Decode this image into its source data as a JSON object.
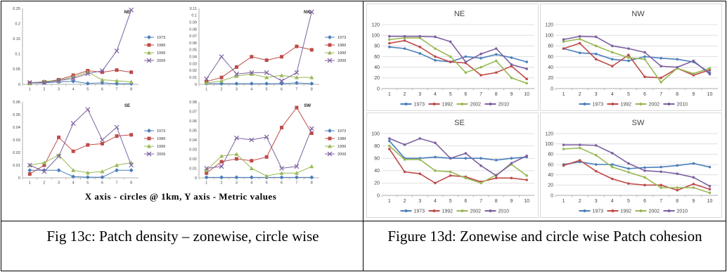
{
  "figure_left": {
    "xaxis_note": "X axis - circles @ 1km, Y axis - Metric values",
    "caption": "Fig 13c: Patch density – zonewise, circle wise"
  },
  "figure_right": {
    "caption": "Figure 13d: Zonewise and circle wise Patch cohesion"
  },
  "colors": {
    "series1": "#4a7ebb",
    "series2": "#be4b48",
    "series3": "#98b954",
    "series4": "#7d60a0"
  },
  "chart_data": [
    {
      "type": "line",
      "title": "NE",
      "figure": "13c",
      "x": [
        1,
        2,
        3,
        4,
        5,
        6,
        7,
        8
      ],
      "yticks": [
        "0",
        "0.05",
        "0.1",
        "0.15",
        "0.2",
        "0.25"
      ],
      "ylim": [
        0,
        0.25
      ],
      "series": [
        {
          "name": "1973",
          "values": [
            0.004,
            0.005,
            0.008,
            0.01,
            0.003,
            0.005,
            0.002,
            0.002
          ]
        },
        {
          "name": "1989",
          "values": [
            0.005,
            0.008,
            0.015,
            0.03,
            0.045,
            0.04,
            0.047,
            0.04
          ]
        },
        {
          "name": "1999",
          "values": [
            0.003,
            0.01,
            0.012,
            0.025,
            0.04,
            0.015,
            0.012,
            0.008
          ]
        },
        {
          "name": "2009",
          "values": [
            0.006,
            0.006,
            0.012,
            0.02,
            0.035,
            0.045,
            0.11,
            0.245
          ]
        }
      ]
    },
    {
      "type": "line",
      "title": "NW",
      "figure": "13c",
      "x": [
        1,
        2,
        3,
        4,
        5,
        6,
        7,
        8
      ],
      "yticks": [
        "0",
        "0.01",
        "0.02",
        "0.03",
        "0.04",
        "0.05",
        "0.06",
        "0.07",
        "0.08",
        "0.09",
        "0.1",
        "0.11"
      ],
      "ylim": [
        0,
        0.11
      ],
      "series": [
        {
          "name": "1973",
          "values": [
            0.001,
            0.001,
            0.001,
            0.001,
            0.001,
            0.001,
            0.002,
            0.001
          ]
        },
        {
          "name": "1989",
          "values": [
            0.004,
            0.01,
            0.025,
            0.04,
            0.035,
            0.04,
            0.055,
            0.05
          ]
        },
        {
          "name": "1999",
          "values": [
            0.002,
            0.005,
            0.012,
            0.015,
            0.01,
            0.013,
            0.01,
            0.01
          ]
        },
        {
          "name": "2009",
          "values": [
            0.008,
            0.04,
            0.015,
            0.017,
            0.017,
            0.005,
            0.017,
            0.105
          ]
        }
      ]
    },
    {
      "type": "line",
      "title": "SE",
      "figure": "13c",
      "x": [
        1,
        2,
        3,
        4,
        5,
        6,
        7,
        8
      ],
      "yticks": [
        "0",
        "0.01",
        "0.02",
        "0.03",
        "0.04",
        "0.05",
        "0.06"
      ],
      "ylim": [
        0,
        0.06
      ],
      "series": [
        {
          "name": "1973",
          "values": [
            0.006,
            0.006,
            0.006,
            0.001,
            0.0005,
            0.0005,
            0.006,
            0.006
          ]
        },
        {
          "name": "1989",
          "values": [
            0.003,
            0.01,
            0.032,
            0.021,
            0.026,
            0.027,
            0.033,
            0.034
          ]
        },
        {
          "name": "1999",
          "values": [
            0.01,
            0.012,
            0.018,
            0.006,
            0.004,
            0.005,
            0.01,
            0.012
          ]
        },
        {
          "name": "2009",
          "values": [
            0.01,
            0.005,
            0.017,
            0.043,
            0.054,
            0.03,
            0.04,
            0.01
          ]
        }
      ]
    },
    {
      "type": "line",
      "title": "SW",
      "figure": "13c",
      "x": [
        1,
        2,
        3,
        4,
        5,
        6,
        7,
        8
      ],
      "yticks": [
        "0",
        "0.01",
        "0.02",
        "0.03",
        "0.04",
        "0.05",
        "0.06",
        "0.07",
        "0.08"
      ],
      "ylim": [
        0,
        0.08
      ],
      "series": [
        {
          "name": "1973",
          "values": [
            0.0005,
            0.0005,
            0.0005,
            0.0005,
            0.0005,
            0.0005,
            0.0005,
            0.0005
          ]
        },
        {
          "name": "1989",
          "values": [
            0.005,
            0.017,
            0.02,
            0.018,
            0.022,
            0.053,
            0.074,
            0.047
          ]
        },
        {
          "name": "1999",
          "values": [
            0.008,
            0.023,
            0.025,
            0.01,
            0.002,
            0.005,
            0.005,
            0.012
          ]
        },
        {
          "name": "2009",
          "values": [
            0.01,
            0.012,
            0.042,
            0.04,
            0.043,
            0.01,
            0.012,
            0.052
          ]
        }
      ]
    },
    {
      "type": "line",
      "title": "NE",
      "figure": "13d",
      "x": [
        1,
        2,
        3,
        4,
        5,
        6,
        7,
        8,
        9,
        10
      ],
      "yticks": [
        "0",
        "20",
        "40",
        "60",
        "80",
        "100",
        "120"
      ],
      "ylim": [
        0,
        120
      ],
      "series": [
        {
          "name": "1973",
          "values": [
            78,
            75,
            66,
            53,
            50,
            60,
            57,
            64,
            58,
            50
          ]
        },
        {
          "name": "1992",
          "values": [
            85,
            90,
            78,
            60,
            50,
            48,
            25,
            30,
            42,
            18
          ]
        },
        {
          "name": "2002",
          "values": [
            92,
            95,
            95,
            75,
            60,
            30,
            40,
            52,
            20,
            10
          ]
        },
        {
          "name": "2010",
          "values": [
            98,
            98,
            98,
            97,
            88,
            50,
            65,
            75,
            45,
            37
          ]
        }
      ]
    },
    {
      "type": "line",
      "title": "NW",
      "figure": "13d",
      "x": [
        1,
        2,
        3,
        4,
        5,
        6,
        7,
        8,
        9,
        10
      ],
      "yticks": [
        "0",
        "20",
        "40",
        "60",
        "80",
        "100",
        "120"
      ],
      "ylim": [
        0,
        120
      ],
      "series": [
        {
          "name": "1973",
          "values": [
            75,
            67,
            65,
            55,
            52,
            60,
            57,
            55,
            50,
            30
          ]
        },
        {
          "name": "1992",
          "values": [
            75,
            85,
            55,
            42,
            63,
            22,
            20,
            38,
            25,
            35
          ]
        },
        {
          "name": "2002",
          "values": [
            88,
            93,
            80,
            68,
            58,
            55,
            12,
            38,
            28,
            38
          ]
        },
        {
          "name": "2010",
          "values": [
            92,
            98,
            97,
            80,
            75,
            68,
            42,
            40,
            52,
            27
          ]
        }
      ]
    },
    {
      "type": "line",
      "title": "SE",
      "figure": "13d",
      "x": [
        1,
        2,
        3,
        4,
        5,
        6,
        7,
        8,
        9,
        10
      ],
      "yticks": [
        "0",
        "20",
        "40",
        "60",
        "80",
        "100"
      ],
      "ylim": [
        0,
        100
      ],
      "series": [
        {
          "name": "1973",
          "values": [
            88,
            60,
            60,
            62,
            60,
            60,
            60,
            57,
            60,
            62
          ]
        },
        {
          "name": "1992",
          "values": [
            75,
            38,
            35,
            20,
            32,
            30,
            22,
            28,
            28,
            25
          ]
        },
        {
          "name": "2002",
          "values": [
            80,
            58,
            58,
            40,
            38,
            28,
            20,
            33,
            50,
            32
          ]
        },
        {
          "name": "2010",
          "values": [
            92,
            82,
            92,
            85,
            60,
            68,
            48,
            32,
            52,
            64
          ]
        }
      ]
    },
    {
      "type": "line",
      "title": "SW",
      "figure": "13d",
      "x": [
        1,
        2,
        3,
        4,
        5,
        6,
        7,
        8,
        9,
        10
      ],
      "yticks": [
        "0",
        "20",
        "40",
        "60",
        "80",
        "100",
        "120"
      ],
      "ylim": [
        0,
        120
      ],
      "series": [
        {
          "name": "1973",
          "values": [
            60,
            65,
            60,
            60,
            52,
            54,
            55,
            58,
            62,
            55
          ]
        },
        {
          "name": "1992",
          "values": [
            58,
            68,
            47,
            32,
            23,
            20,
            20,
            10,
            22,
            12
          ]
        },
        {
          "name": "2002",
          "values": [
            90,
            92,
            78,
            55,
            45,
            35,
            15,
            15,
            15,
            5
          ]
        },
        {
          "name": "2010",
          "values": [
            98,
            98,
            97,
            82,
            62,
            48,
            46,
            42,
            35,
            18
          ]
        }
      ]
    }
  ]
}
